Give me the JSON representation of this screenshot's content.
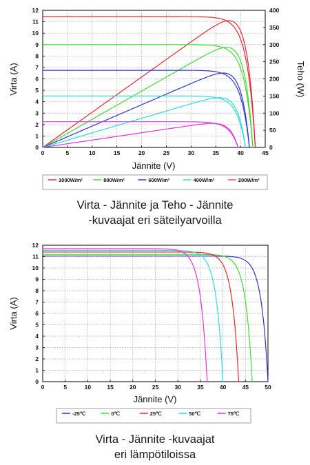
{
  "chart_data": [
    {
      "type": "line",
      "xlabel": "Jännite (V)",
      "ylabel": "Virta (A)",
      "y2label": "Teho (W)",
      "xlim": [
        0,
        45
      ],
      "ylim": [
        0,
        12
      ],
      "y2lim": [
        0,
        400
      ],
      "xticks": [
        "0",
        "5",
        "10",
        "15",
        "20",
        "25",
        "30",
        "35",
        "40",
        "45"
      ],
      "yticks": [
        "0",
        "1",
        "2",
        "3",
        "4",
        "5",
        "6",
        "7",
        "8",
        "9",
        "10",
        "11",
        "12"
      ],
      "y2ticks": [
        "0",
        "50",
        "100",
        "150",
        "200",
        "250",
        "300",
        "350",
        "400"
      ],
      "grid": true,
      "legend": "bottom",
      "series": [
        {
          "name": "1000W/m²",
          "color": "#e8262a",
          "isc": 11.45,
          "voc": 43.0,
          "pmax": 370
        },
        {
          "name": "800W/m²",
          "color": "#3ddb33",
          "isc": 9.0,
          "voc": 42.5,
          "pmax": 292
        },
        {
          "name": "600W/m²",
          "color": "#2e33c9",
          "isc": 6.75,
          "voc": 41.8,
          "pmax": 217
        },
        {
          "name": "400W/m²",
          "color": "#28dce0",
          "isc": 4.5,
          "voc": 41.0,
          "pmax": 145
        },
        {
          "name": "200W/m²",
          "color": "#e234d2",
          "isc": 2.25,
          "voc": 39.5,
          "pmax": 70
        }
      ],
      "caption": [
        "Virta - Jännite ja Teho - Jännite",
        "-kuvaajat eri säteilyarvoilla"
      ]
    },
    {
      "type": "line",
      "xlabel": "Jännite (V)",
      "ylabel": "Virta (A)",
      "xlim": [
        0,
        50
      ],
      "ylim": [
        0,
        12
      ],
      "xticks": [
        "0",
        "5",
        "10",
        "15",
        "20",
        "25",
        "30",
        "35",
        "40",
        "45",
        "50"
      ],
      "yticks": [
        "0",
        "1",
        "2",
        "3",
        "4",
        "5",
        "6",
        "7",
        "8",
        "9",
        "10",
        "11",
        "12"
      ],
      "grid": true,
      "legend": "bottom",
      "series": [
        {
          "name": "-25℃",
          "color": "#2e33c9",
          "isc": 11.05,
          "voc": 50.0
        },
        {
          "name": "0℃",
          "color": "#3ddb33",
          "isc": 11.2,
          "voc": 46.5
        },
        {
          "name": "25℃",
          "color": "#e8262a",
          "isc": 11.4,
          "voc": 43.5
        },
        {
          "name": "50℃",
          "color": "#28dce0",
          "isc": 11.55,
          "voc": 40.0
        },
        {
          "name": "75℃",
          "color": "#e234d2",
          "isc": 11.7,
          "voc": 36.5
        }
      ],
      "caption": [
        "Virta - Jännite -kuvaajat",
        "eri lämpötiloissa"
      ]
    }
  ]
}
